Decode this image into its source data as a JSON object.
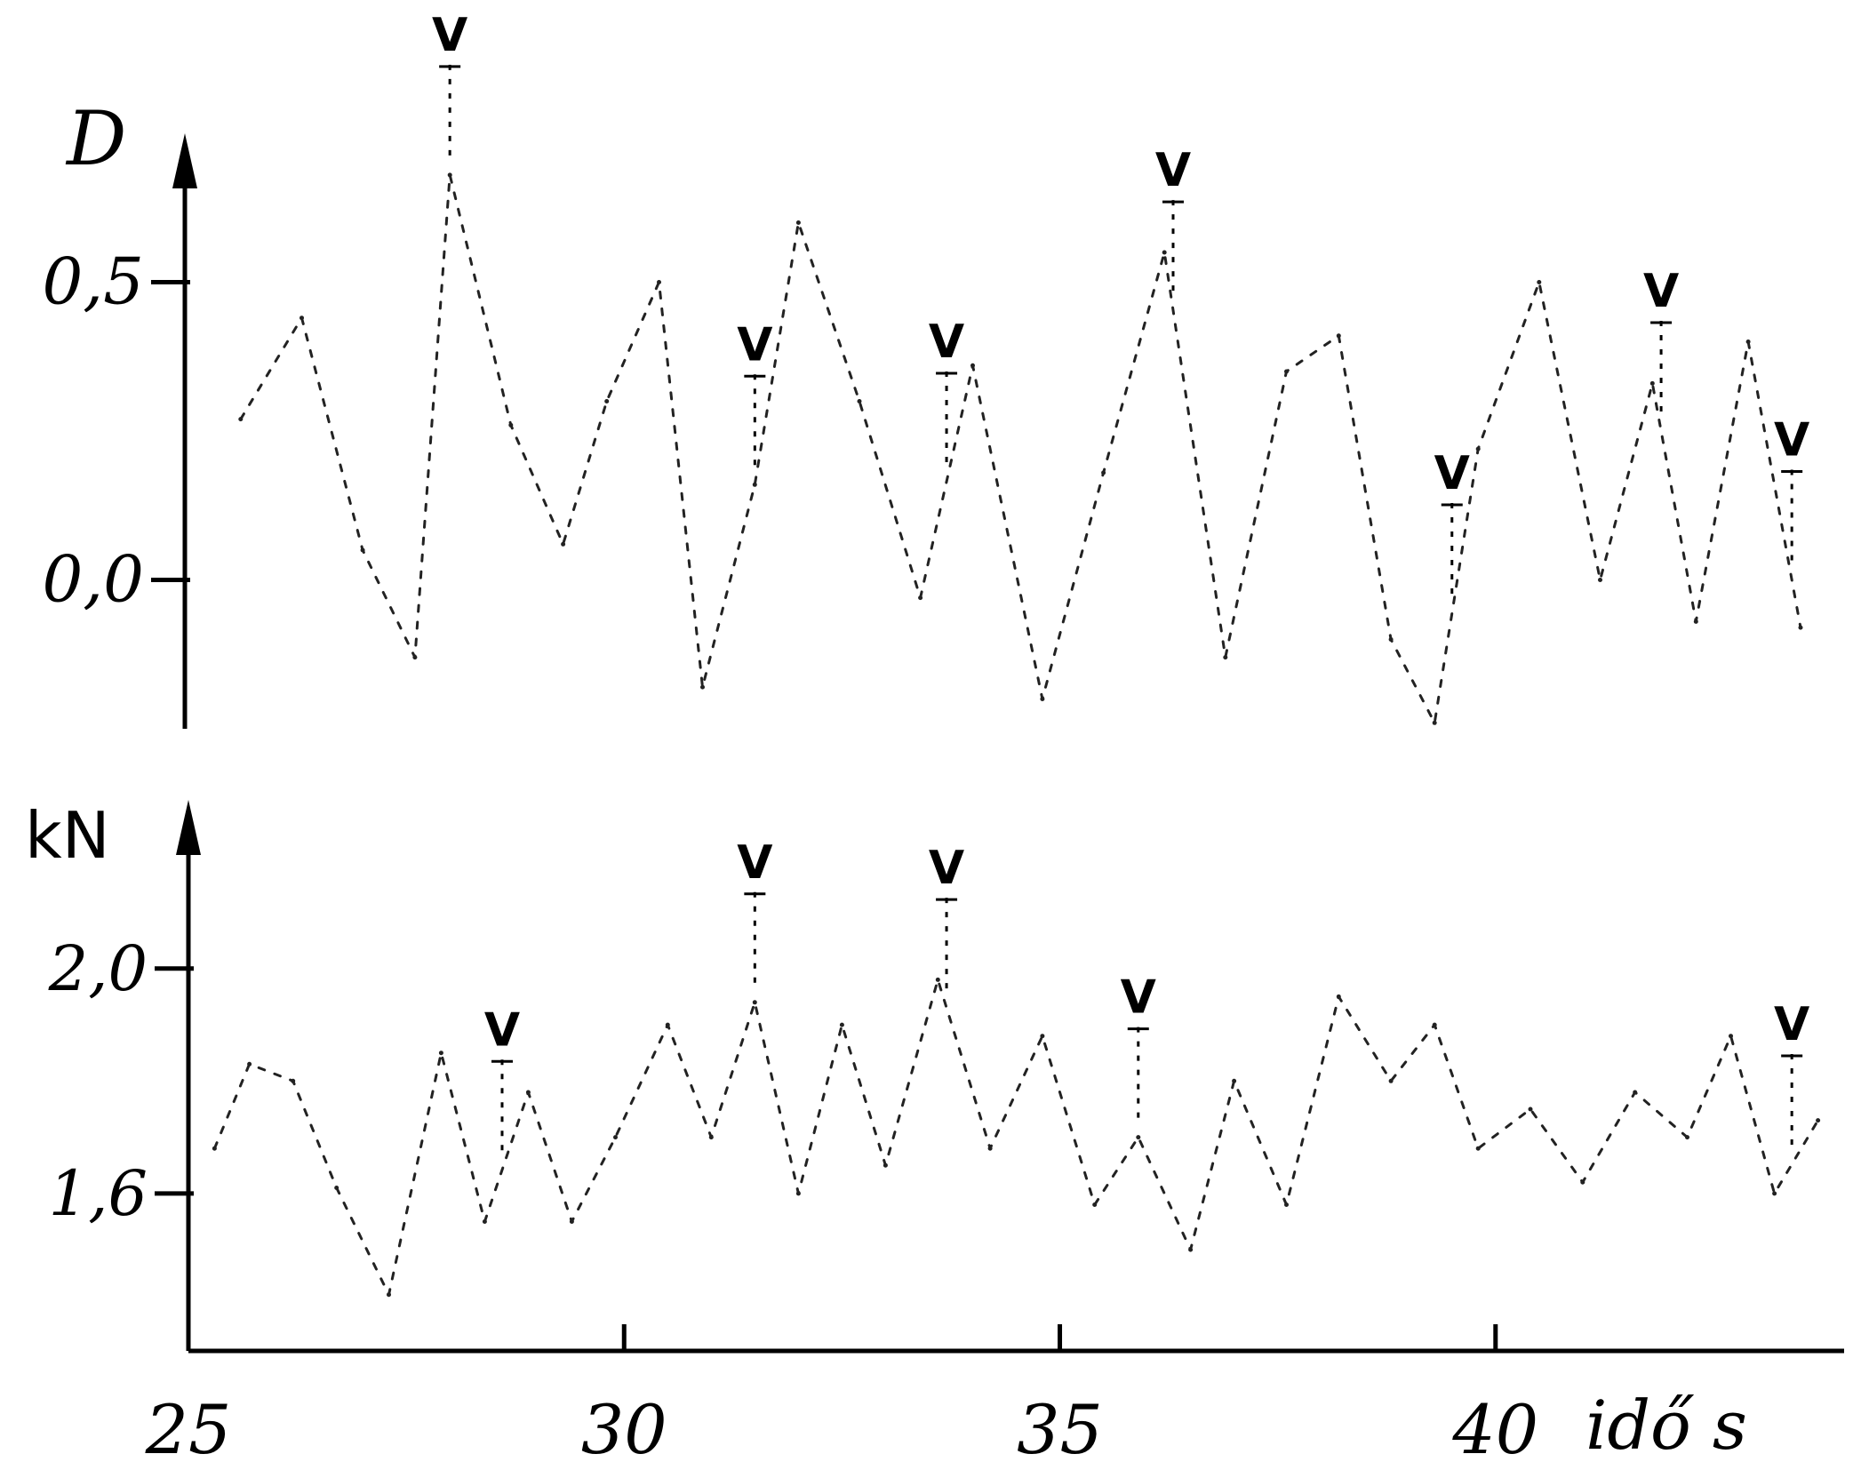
{
  "chart_data": [
    {
      "type": "line",
      "panel": "top",
      "ylabel": "D",
      "yticks": [
        {
          "label": "0,5",
          "value": 0.5
        },
        {
          "label": "0,0",
          "value": 0.0
        }
      ],
      "ylim": [
        -0.25,
        0.75
      ],
      "xlim": [
        25,
        44
      ],
      "grid": false,
      "marker_symbol": "V",
      "series": [
        {
          "x": [
            25.6,
            26.3,
            27.0,
            27.6,
            28.0,
            28.7,
            29.3,
            29.8,
            30.4,
            30.9,
            31.5,
            32.0,
            32.7,
            33.4,
            34.0,
            34.8,
            35.5,
            36.2,
            36.9,
            37.6,
            38.2,
            38.8,
            39.3,
            39.8,
            40.5,
            41.2,
            41.8,
            42.3,
            42.9,
            43.5
          ],
          "y": [
            0.27,
            0.44,
            0.05,
            -0.13,
            0.68,
            0.26,
            0.06,
            0.3,
            0.5,
            -0.18,
            0.16,
            0.6,
            0.3,
            -0.03,
            0.36,
            -0.2,
            0.18,
            0.55,
            -0.13,
            0.35,
            0.41,
            -0.1,
            -0.24,
            0.22,
            0.5,
            0.0,
            0.33,
            -0.07,
            0.4,
            -0.08
          ]
        }
      ],
      "markers_x": [
        28.0,
        31.5,
        33.7,
        36.3,
        39.5,
        41.9,
        43.4
      ]
    },
    {
      "type": "line",
      "panel": "bottom",
      "ylabel": "kN",
      "yticks": [
        {
          "label": "2,0",
          "value": 2.0
        },
        {
          "label": "1,6",
          "value": 1.6
        }
      ],
      "ylim": [
        1.32,
        2.3
      ],
      "xlabel": "idő s",
      "xticks": [
        {
          "label": "25",
          "value": 25
        },
        {
          "label": "30",
          "value": 30
        },
        {
          "label": "35",
          "value": 35
        },
        {
          "label": "40",
          "value": 40
        }
      ],
      "xlim": [
        25,
        44
      ],
      "grid": false,
      "marker_symbol": "V",
      "series": [
        {
          "x": [
            25.3,
            25.7,
            26.2,
            26.7,
            27.3,
            27.9,
            28.4,
            28.9,
            29.4,
            29.9,
            30.5,
            31.0,
            31.5,
            32.0,
            32.5,
            33.0,
            33.6,
            34.2,
            34.8,
            35.4,
            35.9,
            36.5,
            37.0,
            37.6,
            38.2,
            38.8,
            39.3,
            39.8,
            40.4,
            41.0,
            41.6,
            42.2,
            42.7,
            43.2,
            43.7
          ],
          "y": [
            1.68,
            1.83,
            1.8,
            1.61,
            1.42,
            1.85,
            1.55,
            1.78,
            1.55,
            1.7,
            1.9,
            1.7,
            1.94,
            1.6,
            1.9,
            1.65,
            1.98,
            1.68,
            1.88,
            1.58,
            1.7,
            1.5,
            1.8,
            1.58,
            1.95,
            1.8,
            1.9,
            1.68,
            1.75,
            1.62,
            1.78,
            1.7,
            1.88,
            1.6,
            1.73
          ]
        }
      ],
      "markers_x": [
        28.6,
        31.5,
        33.7,
        35.9,
        43.4
      ]
    }
  ]
}
